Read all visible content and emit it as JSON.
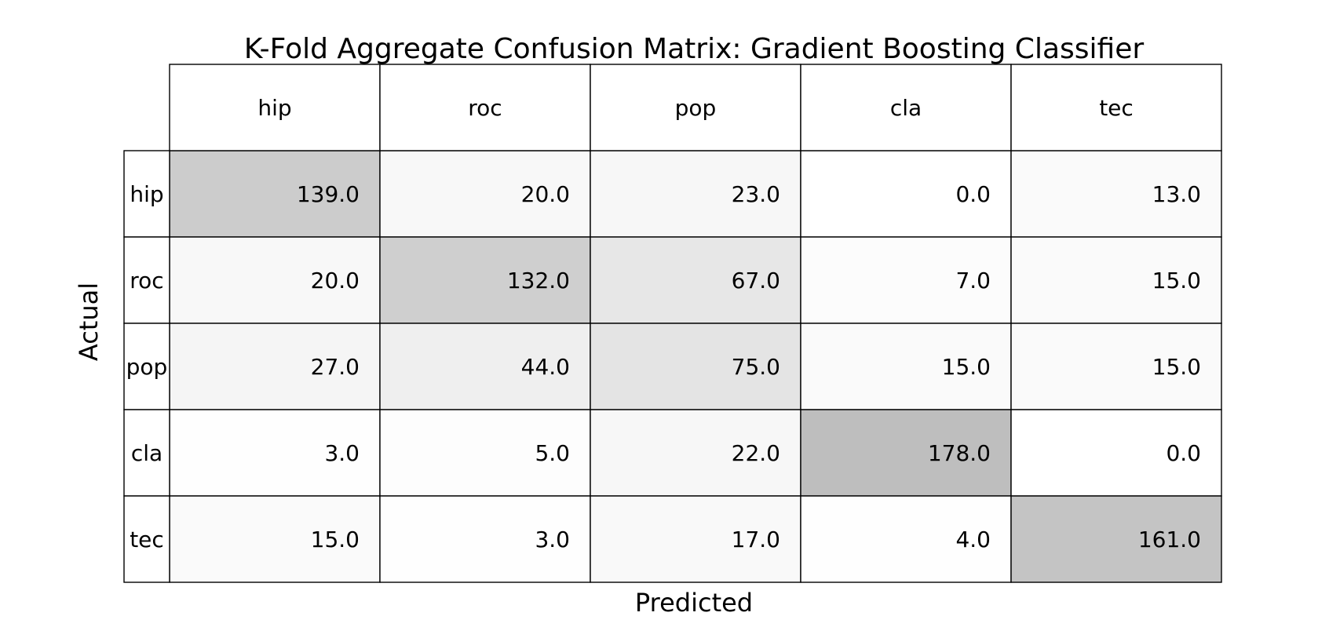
{
  "chart_data": {
    "type": "heatmap",
    "title": "K-Fold Aggregate Confusion Matrix: Gradient Boosting Classifier",
    "xlabel": "Predicted",
    "ylabel": "Actual",
    "col_labels": [
      "hip",
      "roc",
      "pop",
      "cla",
      "tec"
    ],
    "row_labels": [
      "hip",
      "roc",
      "pop",
      "cla",
      "tec"
    ],
    "values": [
      [
        139.0,
        20.0,
        23.0,
        0.0,
        13.0
      ],
      [
        20.0,
        132.0,
        67.0,
        7.0,
        15.0
      ],
      [
        27.0,
        44.0,
        75.0,
        15.0,
        15.0
      ],
      [
        3.0,
        5.0,
        22.0,
        178.0,
        0.0
      ],
      [
        15.0,
        3.0,
        17.0,
        4.0,
        161.0
      ]
    ],
    "value_format": "0.0",
    "colormap": "greys",
    "color_range": [
      0,
      700
    ]
  }
}
